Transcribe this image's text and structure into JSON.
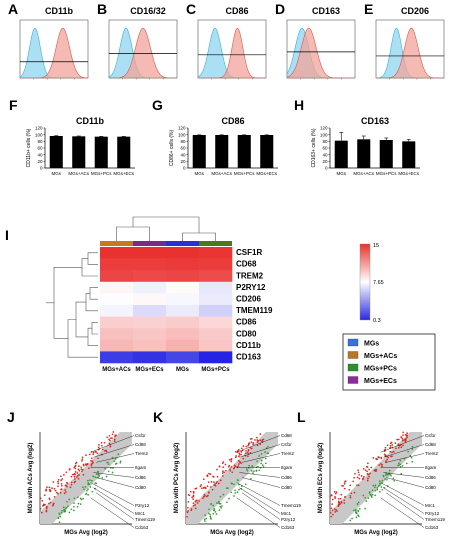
{
  "panel_labels": [
    "A",
    "B",
    "C",
    "D",
    "E",
    "F",
    "G",
    "H",
    "I",
    "J",
    "K",
    "L"
  ],
  "flow_titles": [
    "CD11b",
    "CD16/32",
    "CD86",
    "CD163",
    "CD206"
  ],
  "chart_data": [
    {
      "type": "bar",
      "title": "CD11b",
      "ylabel": "CD11b+ cells (%)",
      "categories": [
        "MGs",
        "MGs+ACs",
        "MGs+PCs",
        "MGs+ECs"
      ],
      "values": [
        96,
        95,
        94,
        94
      ],
      "errors": [
        1,
        1,
        1,
        1
      ],
      "yticks": [
        "0",
        "20",
        "40",
        "60",
        "80",
        "100",
        "120"
      ],
      "ylim": [
        0,
        120
      ]
    },
    {
      "type": "bar",
      "title": "CD86",
      "ylabel": "CD86+ cells (%)",
      "categories": [
        "MGs",
        "MGs+ACs",
        "MGs+PCs",
        "MGs+ECs"
      ],
      "values": [
        99,
        99,
        99,
        99
      ],
      "errors": [
        0.5,
        0.5,
        0.5,
        0.5
      ],
      "yticks": [
        "0",
        "20",
        "40",
        "60",
        "80",
        "100",
        "120"
      ],
      "ylim": [
        0,
        120
      ]
    },
    {
      "type": "bar",
      "title": "CD163",
      "ylabel": "CD163+ cells (%)",
      "categories": [
        "MGs",
        "MGs+ACs",
        "MGs+PCs",
        "MGs+ECs"
      ],
      "values": [
        82,
        86,
        84,
        80
      ],
      "errors": [
        25,
        10,
        6,
        6
      ],
      "yticks": [
        "0",
        "20",
        "40",
        "60",
        "80",
        "100",
        "120"
      ],
      "ylim": [
        0,
        120
      ]
    },
    {
      "type": "heatmap",
      "columns": [
        "MGs+ACs",
        "MGs+ECs",
        "MGs",
        "MGs+PCs"
      ],
      "rows": [
        "CSF1R",
        "CD68",
        "TREM2",
        "P2RY12",
        "CD206",
        "TMEM119",
        "CD86",
        "CD80",
        "CD11b",
        "CD163"
      ],
      "values": [
        [
          14.6,
          14.6,
          14.6,
          14.5
        ],
        [
          14.2,
          14.2,
          14.3,
          14.2
        ],
        [
          13.9,
          13.8,
          13.9,
          13.7
        ],
        [
          8.0,
          7.2,
          7.8,
          6.9
        ],
        [
          7.6,
          7.9,
          7.4,
          7.0
        ],
        [
          7.3,
          6.5,
          7.0,
          6.1
        ],
        [
          9.3,
          9.2,
          9.4,
          9.0
        ],
        [
          9.8,
          9.6,
          9.9,
          9.5
        ],
        [
          10.1,
          9.8,
          10.3,
          9.6
        ],
        [
          1.3,
          1.0,
          1.6,
          0.5
        ]
      ],
      "scale_labels": [
        "15",
        "7.65",
        "0.3"
      ],
      "scale_range": [
        0.3,
        15
      ],
      "column_colors": [
        "#c9781e",
        "#7a2a8c",
        "#2a30d8",
        "#4a7a1e"
      ]
    }
  ],
  "legend": [
    {
      "label": "MGs",
      "color": "#3a6fe0"
    },
    {
      "label": "MGs+ACs",
      "color": "#b5782a"
    },
    {
      "label": "MGs+PCs",
      "color": "#2f8f2f"
    },
    {
      "label": "MGs+ECs",
      "color": "#8a2c9c"
    }
  ],
  "scatter_panels": [
    {
      "ylabel": "MGs with ACs Avg (log2)",
      "xlabel": "MGs Avg (log2)",
      "genes": [
        "Csf1r",
        "Cd68",
        "Trem2",
        "Itgam",
        "Cd86",
        "Cd80",
        "P2ry12",
        "Mrc1",
        "Tmem119",
        "Cd163"
      ]
    },
    {
      "ylabel": "MGs with PCs Avg (log2)",
      "xlabel": "MGs Avg (log2)",
      "genes": [
        "Cd68",
        "Csf1r",
        "Trem2",
        "Itgam",
        "Cd86",
        "Cd80",
        "Tmem119",
        "Mrc1",
        "P2ry12",
        "Cd163"
      ]
    },
    {
      "ylabel": "MGs with ECs Avg (log2)",
      "xlabel": "MGs Avg (log2)",
      "genes": [
        "Csf1r",
        "Cd68",
        "Trem2",
        "Itgam",
        "Cd86",
        "Cd80",
        "Mrc1",
        "P2ry12",
        "Tmem119",
        "Cd163"
      ]
    }
  ],
  "colors": {
    "high": "#e8322a",
    "mid": "#ffffff",
    "low": "#2a2ae0",
    "scatter_red": "#e0241c",
    "scatter_green": "#2e9e2e",
    "scatter_grey": "#c8c8c8"
  }
}
